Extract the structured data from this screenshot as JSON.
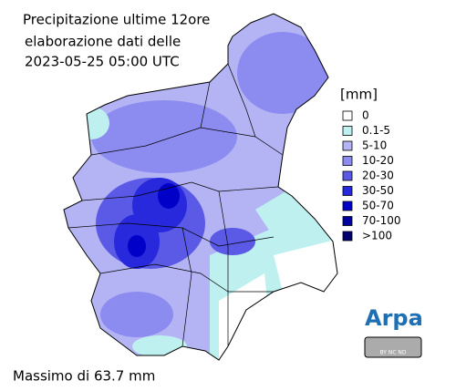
{
  "title_lines": [
    "Precipitazione ultime 12ore",
    "elaborazione dati delle",
    "2023-05-25 05:00 UTC"
  ],
  "legend": {
    "title": "[mm]",
    "items": [
      {
        "label": "0",
        "color": "#ffffff"
      },
      {
        "label": "0.1-5",
        "color": "#bff0f0"
      },
      {
        "label": "5-10",
        "color": "#b4b4f5"
      },
      {
        "label": "10-20",
        "color": "#8c8cf0"
      },
      {
        "label": "20-30",
        "color": "#5a5ae6"
      },
      {
        "label": "30-50",
        "color": "#2828dc"
      },
      {
        "label": "50-70",
        "color": "#0000c8"
      },
      {
        "label": "70-100",
        "color": "#0000a0"
      },
      {
        "label": ">100",
        "color": "#000070"
      }
    ]
  },
  "footer": "Massimo di 63.7 mm",
  "logo": {
    "name": "Arpa",
    "license": "BY NC ND"
  }
}
